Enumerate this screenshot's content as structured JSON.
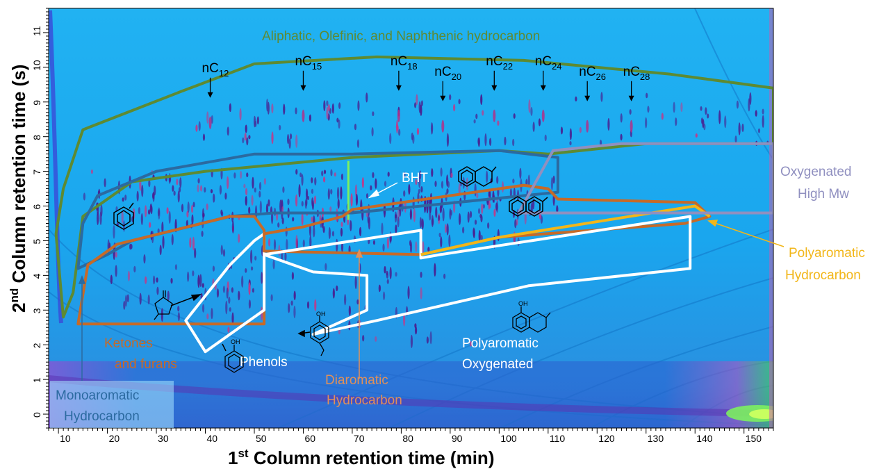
{
  "chart_data": {
    "type": "heatmap",
    "title": "",
    "xlabel": "1st Column retention time (min)",
    "xlabel_main": "1",
    "xlabel_sup": "st",
    "xlabel_rest": " Column retention time (min)",
    "ylabel": "2nd Column retention time (s)",
    "ylabel_main": "2",
    "ylabel_sup": "nd",
    "ylabel_rest": " Column retention time (s)",
    "xlim": [
      8,
      156
    ],
    "ylim": [
      -0.4,
      11.7
    ],
    "x_ticks": [
      10,
      20,
      30,
      40,
      50,
      60,
      70,
      80,
      90,
      100,
      110,
      120,
      130,
      140,
      150
    ],
    "y_ticks": [
      0,
      1,
      2,
      3,
      4,
      5,
      6,
      7,
      8,
      9,
      10,
      11
    ],
    "colors": {
      "background": "#1aa6ee",
      "aliphatic": "#5e8a32",
      "monoaromatic": "#2b6aa0",
      "ketones": "#c66a28",
      "phenols": "#ffffff",
      "diaromatic": "#c66a28",
      "polyaromatic_oxygenated": "#ffffff",
      "polyaromatic_hydrocarbon": "#f2b619",
      "oxygenated_high_mw": "#9090c0",
      "peak": "#4a1f90"
    },
    "carbon_markers": [
      {
        "base": "nC",
        "sub": "12",
        "x": 41,
        "y": 9.1
      },
      {
        "base": "nC",
        "sub": "15",
        "x": 60,
        "y": 9.3
      },
      {
        "base": "nC",
        "sub": "18",
        "x": 79.5,
        "y": 9.3
      },
      {
        "base": "nC",
        "sub": "20",
        "x": 88.5,
        "y": 9.0
      },
      {
        "base": "nC",
        "sub": "22",
        "x": 99,
        "y": 9.3
      },
      {
        "base": "nC",
        "sub": "24",
        "x": 109,
        "y": 9.3
      },
      {
        "base": "nC",
        "sub": "26",
        "x": 118,
        "y": 9.0
      },
      {
        "base": "nC",
        "sub": "28",
        "x": 127,
        "y": 9.0
      }
    ],
    "annotations": [
      {
        "name": "aliphatic",
        "label": "Aliphatic, Olefinic, and Naphthenic hydrocarbon"
      },
      {
        "name": "monoaromatic",
        "label": "Monoaromatic Hydrocarbon"
      },
      {
        "name": "ketones",
        "label": "Ketones and furans"
      },
      {
        "name": "phenols",
        "label": "Phenols"
      },
      {
        "name": "diaromatic",
        "label": "Diaromatic Hydrocarbon"
      },
      {
        "name": "polyaromatic-oxygenated",
        "label": "Polyaromatic Oxygenated"
      },
      {
        "name": "polyaromatic-hydrocarbon",
        "label": "Polyaromatic Hydrocarbon"
      },
      {
        "name": "oxygenated-high-mw",
        "label": "Oxygenated High Mw"
      },
      {
        "name": "bht",
        "label": "BHT"
      }
    ],
    "regions": [
      {
        "name": "aliphatic",
        "points": [
          [
            9.5,
            5.2
          ],
          [
            11,
            6.5
          ],
          [
            15,
            8.2
          ],
          [
            35,
            9.3
          ],
          [
            50,
            10.1
          ],
          [
            75,
            10.3
          ],
          [
            105,
            10.2
          ],
          [
            135,
            9.8
          ],
          [
            156,
            9.4
          ],
          [
            156,
            7.8
          ],
          [
            130,
            7.8
          ],
          [
            110,
            7.5
          ],
          [
            100,
            7.6
          ],
          [
            70,
            7.4
          ],
          [
            40,
            7.0
          ],
          [
            25,
            6.7
          ],
          [
            15,
            5.7
          ],
          [
            13,
            3.5
          ],
          [
            11,
            2.8
          ]
        ]
      },
      {
        "name": "monoaromatic",
        "points": [
          [
            14,
            4.2
          ],
          [
            15,
            5.5
          ],
          [
            18,
            6.3
          ],
          [
            30,
            7.0
          ],
          [
            50,
            7.5
          ],
          [
            70,
            7.5
          ],
          [
            100,
            7.6
          ],
          [
            112,
            7.4
          ],
          [
            112,
            6.4
          ],
          [
            70,
            5.8
          ],
          [
            54,
            5.8
          ],
          [
            45,
            5.7
          ],
          [
            25,
            5.0
          ],
          [
            20,
            4.6
          ]
        ]
      },
      {
        "name": "ketones",
        "points": [
          [
            14,
            2.6
          ],
          [
            16,
            4.3
          ],
          [
            22,
            4.9
          ],
          [
            45,
            5.7
          ],
          [
            50,
            5.7
          ],
          [
            52,
            5.3
          ],
          [
            52,
            2.6
          ]
        ]
      },
      {
        "name": "phenols",
        "points": [
          [
            36,
            2.7
          ],
          [
            45,
            4.3
          ],
          [
            50,
            5.0
          ],
          [
            52,
            5.2
          ],
          [
            52,
            3.0
          ],
          [
            40,
            1.8
          ]
        ]
      },
      {
        "name": "diaromatic",
        "points": [
          [
            52,
            5.2
          ],
          [
            52,
            5.2
          ],
          [
            60,
            5.4
          ],
          [
            68,
            5.7
          ],
          [
            70,
            5.9
          ],
          [
            105,
            6.6
          ],
          [
            110,
            6.5
          ],
          [
            112,
            6.2
          ],
          [
            140,
            6.1
          ],
          [
            143,
            5.7
          ],
          [
            138,
            5.5
          ],
          [
            100,
            5.1
          ],
          [
            84,
            4.6
          ],
          [
            52,
            4.7
          ]
        ]
      },
      {
        "name": "polyaromatic-oxygenated",
        "points": [
          [
            52,
            4.6
          ],
          [
            84,
            5.3
          ],
          [
            84,
            4.5
          ],
          [
            88,
            4.6
          ],
          [
            139,
            5.7
          ],
          [
            139,
            4.2
          ],
          [
            106,
            3.7
          ],
          [
            75,
            2.7
          ],
          [
            62,
            2.3
          ],
          [
            62,
            2.3
          ],
          [
            73,
            3.0
          ],
          [
            73,
            4.0
          ],
          [
            62,
            4.1
          ]
        ]
      },
      {
        "name": "polyaromatic-hydrocarbon",
        "points": [
          [
            84,
            4.6
          ],
          [
            100,
            5.1
          ],
          [
            140,
            6.0
          ],
          [
            143,
            5.7
          ]
        ]
      },
      {
        "name": "oxygenated-high-mw",
        "points": [
          [
            104,
            5.8
          ],
          [
            111,
            7.6
          ],
          [
            125,
            7.8
          ],
          [
            156,
            7.8
          ],
          [
            156,
            5.8
          ]
        ]
      }
    ]
  }
}
